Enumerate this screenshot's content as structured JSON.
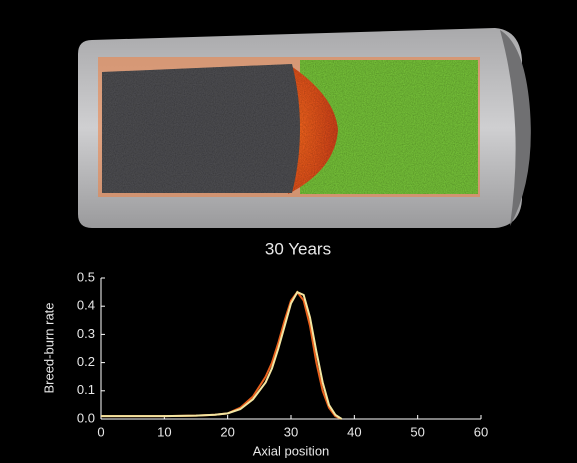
{
  "chart_data": {
    "type": "line",
    "title": "30 Years",
    "xlabel": "Axial position",
    "ylabel": "Breed-burn rate",
    "x": [
      0,
      5,
      10,
      15,
      18,
      20,
      22,
      24,
      26,
      27,
      28,
      29,
      30,
      31,
      32,
      33,
      34,
      35,
      36,
      37,
      38
    ],
    "series": [
      {
        "color": "#e8601c",
        "values": [
          0.01,
          0.01,
          0.01,
          0.012,
          0.015,
          0.02,
          0.04,
          0.08,
          0.15,
          0.2,
          0.27,
          0.35,
          0.42,
          0.45,
          0.42,
          0.33,
          0.2,
          0.1,
          0.04,
          0.01,
          0.0
        ]
      },
      {
        "color": "#f3e6a2",
        "values": [
          0.01,
          0.01,
          0.01,
          0.012,
          0.015,
          0.02,
          0.035,
          0.07,
          0.13,
          0.18,
          0.25,
          0.33,
          0.41,
          0.45,
          0.44,
          0.36,
          0.24,
          0.13,
          0.05,
          0.015,
          0.0
        ]
      }
    ],
    "xlim": [
      0,
      60
    ],
    "xticks": [
      0,
      10,
      20,
      30,
      40,
      50,
      60
    ],
    "ylim": [
      0,
      0.5
    ],
    "yticks": [
      {
        "value": 0,
        "label": "0.0"
      },
      0.1,
      0.2,
      0.3,
      0.4,
      0.5
    ]
  }
}
